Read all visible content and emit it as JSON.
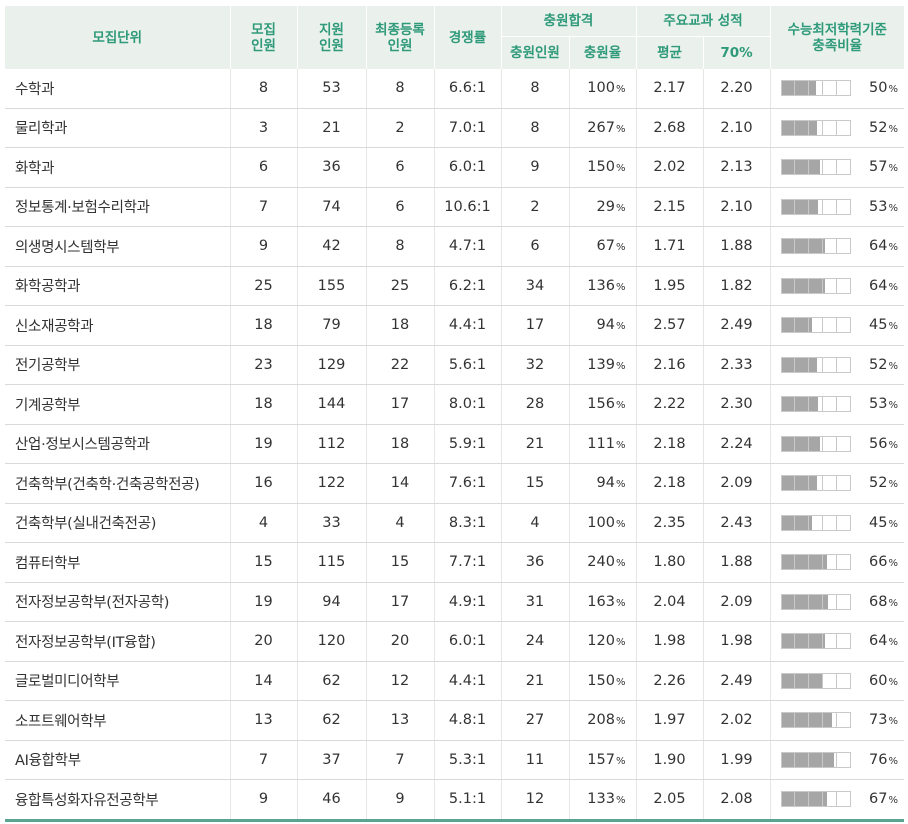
{
  "header": {
    "unit": "모집단위",
    "recruit": "모집\n인원",
    "apply": "지원\n인원",
    "final": "최종등록\n인원",
    "competition": "경쟁률",
    "supp_group": "충원합격",
    "supp_count": "충원인원",
    "supp_rate": "충원율",
    "grade_group": "주요교과 성적",
    "grade_avg": "평균",
    "grade_70": "70%",
    "csat": "수능최저학력기준\n충족비율"
  },
  "pct_unit": "%",
  "rows": [
    {
      "name": "수학과",
      "recruit": "8",
      "apply": "53",
      "final": "8",
      "comp": "6.6:1",
      "supp": "8",
      "supp_rate": "100",
      "avg": "2.17",
      "p70": "2.20",
      "csat": "50",
      "csat_fill": 0.5
    },
    {
      "name": "물리학과",
      "recruit": "3",
      "apply": "21",
      "final": "2",
      "comp": "7.0:1",
      "supp": "8",
      "supp_rate": "267",
      "avg": "2.68",
      "p70": "2.10",
      "csat": "52",
      "csat_fill": 0.52
    },
    {
      "name": "화학과",
      "recruit": "6",
      "apply": "36",
      "final": "6",
      "comp": "6.0:1",
      "supp": "9",
      "supp_rate": "150",
      "avg": "2.02",
      "p70": "2.13",
      "csat": "57",
      "csat_fill": 0.57
    },
    {
      "name": "정보통계·보험수리학과",
      "recruit": "7",
      "apply": "74",
      "final": "6",
      "comp": "10.6:1",
      "supp": "2",
      "supp_rate": "29",
      "avg": "2.15",
      "p70": "2.10",
      "csat": "53",
      "csat_fill": 0.53
    },
    {
      "name": "의생명시스템학부",
      "recruit": "9",
      "apply": "42",
      "final": "8",
      "comp": "4.7:1",
      "supp": "6",
      "supp_rate": "67",
      "avg": "1.71",
      "p70": "1.88",
      "csat": "64",
      "csat_fill": 0.64
    },
    {
      "name": "화학공학과",
      "recruit": "25",
      "apply": "155",
      "final": "25",
      "comp": "6.2:1",
      "supp": "34",
      "supp_rate": "136",
      "avg": "1.95",
      "p70": "1.82",
      "csat": "64",
      "csat_fill": 0.64
    },
    {
      "name": "신소재공학과",
      "recruit": "18",
      "apply": "79",
      "final": "18",
      "comp": "4.4:1",
      "supp": "17",
      "supp_rate": "94",
      "avg": "2.57",
      "p70": "2.49",
      "csat": "45",
      "csat_fill": 0.45
    },
    {
      "name": "전기공학부",
      "recruit": "23",
      "apply": "129",
      "final": "22",
      "comp": "5.6:1",
      "supp": "32",
      "supp_rate": "139",
      "avg": "2.16",
      "p70": "2.33",
      "csat": "52",
      "csat_fill": 0.52
    },
    {
      "name": "기계공학부",
      "recruit": "18",
      "apply": "144",
      "final": "17",
      "comp": "8.0:1",
      "supp": "28",
      "supp_rate": "156",
      "avg": "2.22",
      "p70": "2.30",
      "csat": "53",
      "csat_fill": 0.53
    },
    {
      "name": "산업·정보시스템공학과",
      "recruit": "19",
      "apply": "112",
      "final": "18",
      "comp": "5.9:1",
      "supp": "21",
      "supp_rate": "111",
      "avg": "2.18",
      "p70": "2.24",
      "csat": "56",
      "csat_fill": 0.56
    },
    {
      "name": "건축학부(건축학·건축공학전공)",
      "recruit": "16",
      "apply": "122",
      "final": "14",
      "comp": "7.6:1",
      "supp": "15",
      "supp_rate": "94",
      "avg": "2.18",
      "p70": "2.09",
      "csat": "52",
      "csat_fill": 0.52
    },
    {
      "name": "건축학부(실내건축전공)",
      "recruit": "4",
      "apply": "33",
      "final": "4",
      "comp": "8.3:1",
      "supp": "4",
      "supp_rate": "100",
      "avg": "2.35",
      "p70": "2.43",
      "csat": "45",
      "csat_fill": 0.45
    },
    {
      "name": "컴퓨터학부",
      "recruit": "15",
      "apply": "115",
      "final": "15",
      "comp": "7.7:1",
      "supp": "36",
      "supp_rate": "240",
      "avg": "1.80",
      "p70": "1.88",
      "csat": "66",
      "csat_fill": 0.66
    },
    {
      "name": "전자정보공학부(전자공학)",
      "recruit": "19",
      "apply": "94",
      "final": "17",
      "comp": "4.9:1",
      "supp": "31",
      "supp_rate": "163",
      "avg": "2.04",
      "p70": "2.09",
      "csat": "68",
      "csat_fill": 0.68
    },
    {
      "name": "전자정보공학부(IT융합)",
      "recruit": "20",
      "apply": "120",
      "final": "20",
      "comp": "6.0:1",
      "supp": "24",
      "supp_rate": "120",
      "avg": "1.98",
      "p70": "1.98",
      "csat": "64",
      "csat_fill": 0.64
    },
    {
      "name": "글로벌미디어학부",
      "recruit": "14",
      "apply": "62",
      "final": "12",
      "comp": "4.4:1",
      "supp": "21",
      "supp_rate": "150",
      "avg": "2.26",
      "p70": "2.49",
      "csat": "60",
      "csat_fill": 0.6
    },
    {
      "name": "소프트웨어학부",
      "recruit": "13",
      "apply": "62",
      "final": "13",
      "comp": "4.8:1",
      "supp": "27",
      "supp_rate": "208",
      "avg": "1.97",
      "p70": "2.02",
      "csat": "73",
      "csat_fill": 0.73
    },
    {
      "name": "AI융합학부",
      "recruit": "7",
      "apply": "37",
      "final": "7",
      "comp": "5.3:1",
      "supp": "11",
      "supp_rate": "157",
      "avg": "1.90",
      "p70": "1.99",
      "csat": "76",
      "csat_fill": 0.76
    },
    {
      "name": "융합특성화자유전공학부",
      "recruit": "9",
      "apply": "46",
      "final": "9",
      "comp": "5.1:1",
      "supp": "12",
      "supp_rate": "133",
      "avg": "2.05",
      "p70": "2.08",
      "csat": "67",
      "csat_fill": 0.67
    }
  ]
}
